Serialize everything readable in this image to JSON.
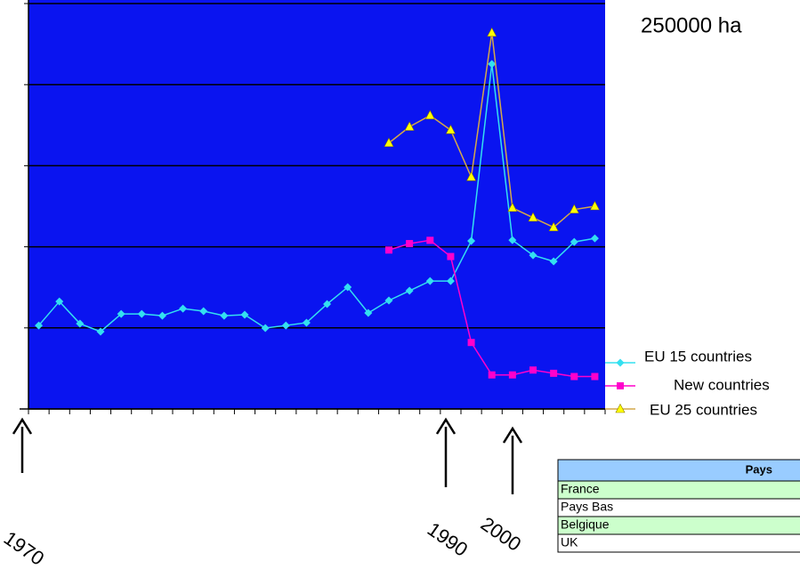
{
  "chart_data": {
    "type": "line",
    "title": "250000 ha",
    "categories": [
      null,
      null,
      null,
      null,
      null,
      null,
      null,
      null,
      null,
      null,
      null,
      null,
      null,
      null,
      null,
      null,
      null,
      null,
      null,
      null,
      null,
      null,
      null,
      null,
      null,
      null,
      null,
      null
    ],
    "ylim": [
      0,
      250000
    ],
    "yticks": [
      0,
      50000,
      100000,
      150000,
      200000,
      250000
    ],
    "grid": true,
    "plot_color": "#0a14f0",
    "legend": "right",
    "series": [
      {
        "name": "EU 15 countries",
        "color": "#33e0f0",
        "marker": "diamond",
        "values": [
          51500,
          66300,
          52600,
          47700,
          58600,
          58600,
          57500,
          61900,
          60300,
          57500,
          58100,
          49900,
          51500,
          53200,
          64700,
          75100,
          59200,
          66900,
          72900,
          78900,
          78900,
          103600,
          212700,
          104100,
          94800,
          91000,
          103000,
          105200
        ]
      },
      {
        "name": "New countries",
        "color": "#ff00cc",
        "marker": "square",
        "values": [
          null,
          null,
          null,
          null,
          null,
          null,
          null,
          null,
          null,
          null,
          null,
          null,
          null,
          null,
          null,
          null,
          null,
          98000,
          102000,
          104000,
          94000,
          41000,
          21000,
          21000,
          24000,
          22000,
          20000,
          20000
        ]
      },
      {
        "name": "EU 25 countries",
        "color": "#ffff00",
        "line_color": "#d4a84a",
        "marker": "triangle",
        "values": [
          null,
          null,
          null,
          null,
          null,
          null,
          null,
          null,
          null,
          null,
          null,
          null,
          null,
          null,
          null,
          null,
          null,
          164000,
          174000,
          181000,
          172000,
          143000,
          232000,
          124000,
          118000,
          112000,
          123000,
          125000
        ]
      }
    ],
    "annotations": [
      "1970",
      "1990",
      "2000"
    ]
  },
  "table": {
    "header": "Pays",
    "rows": [
      "France",
      "Pays Bas",
      "Belgique",
      "UK"
    ]
  }
}
